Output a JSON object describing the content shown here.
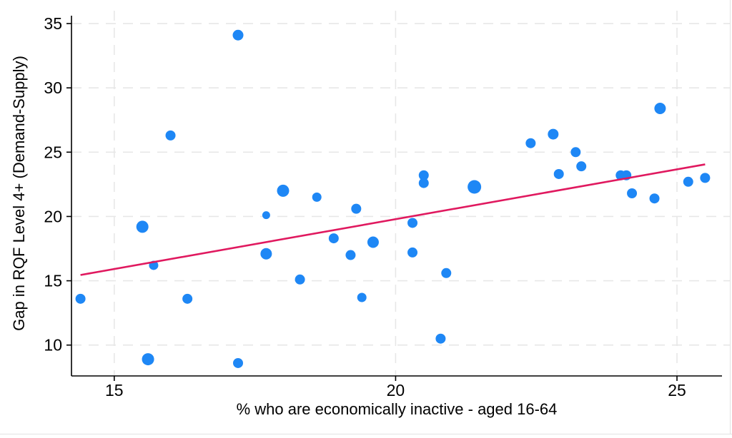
{
  "chart_data": {
    "type": "scatter",
    "title": "",
    "xlabel": "% who are economically inactive - aged 16-64",
    "ylabel": "Gap in RQF Level 4+ (Demand-Supply)",
    "xlim": [
      14.24,
      25.8
    ],
    "ylim": [
      7.6,
      36.0
    ],
    "xticks": [
      15,
      20,
      25
    ],
    "yticks": [
      10,
      15,
      20,
      25,
      30,
      35
    ],
    "grid": "both-dashed",
    "legend_position": "none",
    "point_color": "#1e87f5",
    "trend_color": "#e0195f",
    "axis_color": "#000000",
    "grid_color": "#e7e7e7",
    "points": [
      {
        "x": 14.4,
        "y": 13.6,
        "r": 7
      },
      {
        "x": 15.5,
        "y": 19.2,
        "r": 8.5
      },
      {
        "x": 15.6,
        "y": 8.9,
        "r": 8.5
      },
      {
        "x": 15.7,
        "y": 16.2,
        "r": 6.5
      },
      {
        "x": 16.0,
        "y": 26.3,
        "r": 7
      },
      {
        "x": 16.3,
        "y": 13.6,
        "r": 7
      },
      {
        "x": 17.2,
        "y": 34.1,
        "r": 7.5
      },
      {
        "x": 17.2,
        "y": 8.6,
        "r": 7
      },
      {
        "x": 17.7,
        "y": 17.1,
        "r": 8
      },
      {
        "x": 17.7,
        "y": 20.1,
        "r": 5.5
      },
      {
        "x": 18.0,
        "y": 22.0,
        "r": 8.5
      },
      {
        "x": 18.3,
        "y": 15.1,
        "r": 7
      },
      {
        "x": 18.6,
        "y": 21.5,
        "r": 6.5
      },
      {
        "x": 18.9,
        "y": 18.3,
        "r": 7
      },
      {
        "x": 19.2,
        "y": 17.0,
        "r": 7
      },
      {
        "x": 19.3,
        "y": 20.6,
        "r": 7
      },
      {
        "x": 19.4,
        "y": 13.7,
        "r": 6.5
      },
      {
        "x": 19.6,
        "y": 18.0,
        "r": 8
      },
      {
        "x": 20.3,
        "y": 19.5,
        "r": 7
      },
      {
        "x": 20.3,
        "y": 17.2,
        "r": 7
      },
      {
        "x": 20.5,
        "y": 23.2,
        "r": 7
      },
      {
        "x": 20.5,
        "y": 22.6,
        "r": 7
      },
      {
        "x": 20.8,
        "y": 10.5,
        "r": 7
      },
      {
        "x": 20.9,
        "y": 15.6,
        "r": 7
      },
      {
        "x": 21.4,
        "y": 22.3,
        "r": 9.5
      },
      {
        "x": 22.4,
        "y": 25.7,
        "r": 7
      },
      {
        "x": 22.8,
        "y": 26.4,
        "r": 7.5
      },
      {
        "x": 22.9,
        "y": 23.3,
        "r": 7
      },
      {
        "x": 23.2,
        "y": 25.0,
        "r": 7
      },
      {
        "x": 23.3,
        "y": 23.9,
        "r": 7
      },
      {
        "x": 24.0,
        "y": 23.2,
        "r": 7
      },
      {
        "x": 24.1,
        "y": 23.2,
        "r": 7
      },
      {
        "x": 24.2,
        "y": 21.8,
        "r": 7
      },
      {
        "x": 24.6,
        "y": 21.4,
        "r": 7
      },
      {
        "x": 24.7,
        "y": 28.4,
        "r": 8
      },
      {
        "x": 25.2,
        "y": 22.7,
        "r": 7
      },
      {
        "x": 25.5,
        "y": 23.0,
        "r": 7
      }
    ],
    "trend_line": {
      "x1": 14.4,
      "y1": 15.45,
      "x2": 25.5,
      "y2": 24.05
    }
  }
}
